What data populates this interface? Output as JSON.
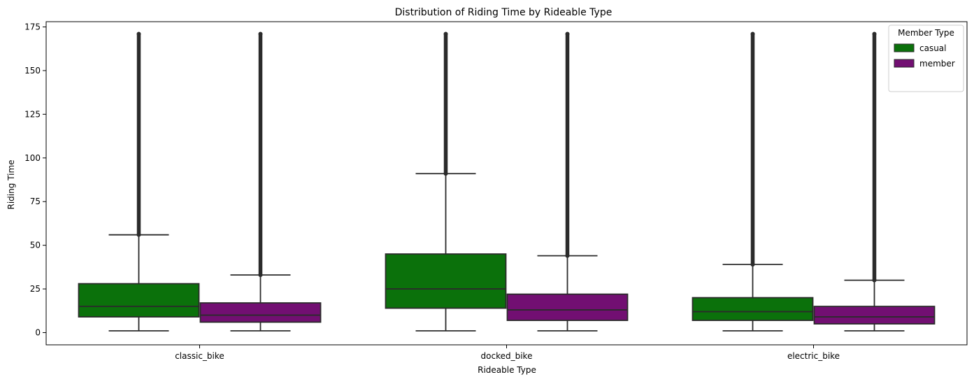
{
  "chart_data": {
    "type": "box",
    "title": "Distribution of Riding Time by Rideable Type",
    "xlabel": "Rideable Type",
    "ylabel": "Riding Time",
    "categories": [
      "classic_bike",
      "docked_bike",
      "electric_bike"
    ],
    "ylim": [
      -7,
      178
    ],
    "yticks": [
      0,
      25,
      50,
      75,
      100,
      125,
      150,
      175
    ],
    "grid": false,
    "legend": {
      "title": "Member Type",
      "position": "top-right"
    },
    "series": [
      {
        "name": "casual",
        "color": "#0b710b",
        "boxes": [
          {
            "category": "classic_bike",
            "whisker_low": 1,
            "q1": 9,
            "median": 15,
            "q3": 28,
            "whisker_high": 56,
            "outliers_max": 171
          },
          {
            "category": "docked_bike",
            "whisker_low": 1,
            "q1": 14,
            "median": 25,
            "q3": 45,
            "whisker_high": 91,
            "outliers_max": 171
          },
          {
            "category": "electric_bike",
            "whisker_low": 1,
            "q1": 7,
            "median": 12,
            "q3": 20,
            "whisker_high": 39,
            "outliers_max": 171
          }
        ]
      },
      {
        "name": "member",
        "color": "#720f72",
        "boxes": [
          {
            "category": "classic_bike",
            "whisker_low": 1,
            "q1": 6,
            "median": 10,
            "q3": 17,
            "whisker_high": 33,
            "outliers_max": 171
          },
          {
            "category": "docked_bike",
            "whisker_low": 1,
            "q1": 7,
            "median": 13,
            "q3": 22,
            "whisker_high": 44,
            "outliers_max": 171
          },
          {
            "category": "electric_bike",
            "whisker_low": 1,
            "q1": 5,
            "median": 9,
            "q3": 15,
            "whisker_high": 30,
            "outliers_max": 171
          }
        ]
      }
    ]
  }
}
